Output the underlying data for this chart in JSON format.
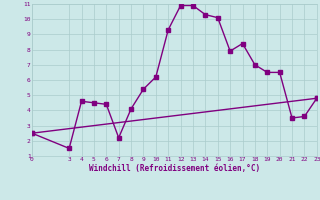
{
  "xlabel": "Windchill (Refroidissement éolien,°C)",
  "line1_x": [
    0,
    3,
    4,
    5,
    6,
    7,
    8,
    9,
    10,
    11,
    12,
    13,
    14,
    15,
    16,
    17,
    18,
    19,
    20,
    21,
    22,
    23
  ],
  "line1_y": [
    2.5,
    1.5,
    4.6,
    4.5,
    4.4,
    2.2,
    4.1,
    5.4,
    6.2,
    9.3,
    10.9,
    10.9,
    10.3,
    10.1,
    7.9,
    8.4,
    7.0,
    6.5,
    6.5,
    3.5,
    3.6,
    4.8
  ],
  "line2_x": [
    0,
    23
  ],
  "line2_y": [
    2.5,
    4.8
  ],
  "line_color": "#800080",
  "bg_color": "#cce8e8",
  "grid_color": "#aacccc",
  "xlim": [
    0,
    23
  ],
  "ylim": [
    1,
    11
  ],
  "yticks": [
    1,
    2,
    3,
    4,
    5,
    6,
    7,
    8,
    9,
    10,
    11
  ],
  "xticks": [
    0,
    3,
    4,
    5,
    6,
    7,
    8,
    9,
    10,
    11,
    12,
    13,
    14,
    15,
    16,
    17,
    18,
    19,
    20,
    21,
    22,
    23
  ],
  "tick_color": "#800080",
  "label_color": "#800080",
  "marker": "s",
  "markersize": 2.5,
  "linewidth": 1.0
}
